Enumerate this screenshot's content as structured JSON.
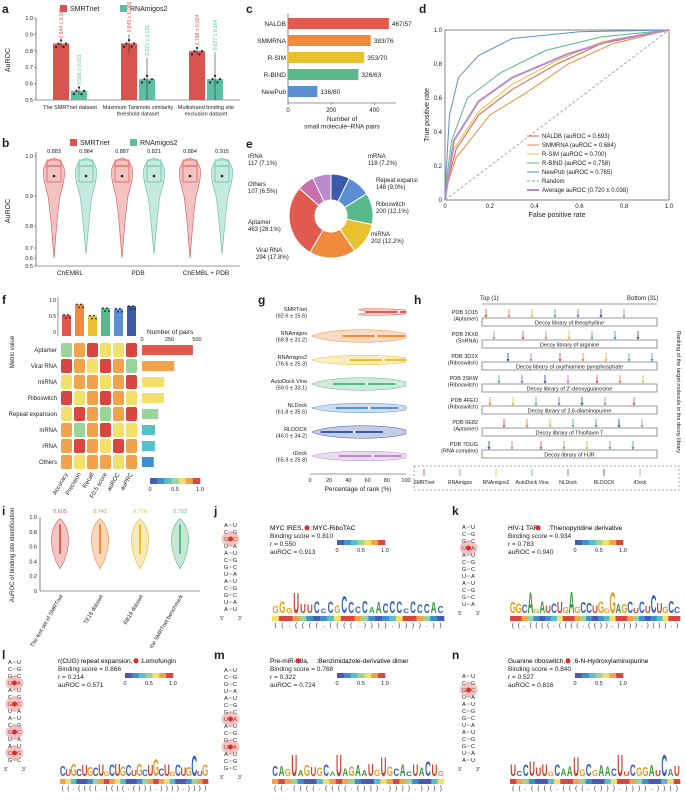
{
  "colors": {
    "smrt": "#d9534f",
    "rnam": "#5bbfa3",
    "red": "#e05a4f",
    "teal": "#4bb596",
    "orange": "#f08a3c",
    "purple": "#b98cc9",
    "yellow": "#e8c030",
    "green": "#58b98a",
    "blue": "#5b8fd1",
    "navy": "#3b5aa8",
    "pink": "#c86fb0",
    "gray": "#999999"
  },
  "panel_labels": {
    "a": "a",
    "b": "b",
    "c": "c",
    "d": "d",
    "e": "e",
    "f": "f",
    "g": "g",
    "h": "h",
    "i": "i",
    "j": "j",
    "k": "k",
    "l": "l",
    "m": "m",
    "n": "n"
  },
  "chart_data": [
    {
      "id": "a",
      "type": "bar",
      "ylabel": "AuROC",
      "legend": [
        "SMRTnet",
        "RNAmigos2"
      ],
      "categories": [
        "The SMRTnet dataset",
        "Maximum Tanimoto similarity threshold dataset",
        "Multistrand binding site exclusion dataset"
      ],
      "series": [
        {
          "name": "SMRTnet",
          "values": [
            0.844,
            0.845,
            0.798
          ],
          "errors": [
            0.019,
            0.056,
            0.024
          ]
        },
        {
          "name": "RNAmigos2",
          "values": [
            0.556,
            0.627,
            0.627
          ],
          "errors": [
            0.023,
            0.131,
            0.164
          ]
        }
      ],
      "value_labels": [
        "0.844 ± 0.019",
        "0.556 ± 0.023",
        "0.845 ± 0.056",
        "0.627 ± 0.131",
        "0.798 ± 0.024",
        "0.627 ± 0.164"
      ],
      "yticks": [
        "0.5",
        "0.6",
        "0.7",
        "0.8",
        "0.9",
        "1.0"
      ],
      "ylim": [
        0.5,
        1.0
      ]
    },
    {
      "id": "b",
      "type": "violin",
      "ylabel": "AuROC",
      "legend": [
        "SMRTnet",
        "RNAmigos2"
      ],
      "categories": [
        "ChEMBL",
        "PDB",
        "ChEMBL + PDB"
      ],
      "medians": [
        0.883,
        0.984,
        0.887,
        0.821,
        0.884,
        0.915
      ],
      "median_labels": [
        "0.883",
        "0.984",
        "0.887",
        "0.821",
        "0.884",
        "0.915"
      ],
      "yticks": [
        "0.5",
        "0.6",
        "0.7",
        "0.8",
        "0.9",
        "1.0"
      ]
    },
    {
      "id": "c",
      "type": "bar",
      "xlabel": "Number of small molecule–RNA pairs",
      "categories": [
        "NALDB",
        "SMMRNA",
        "R-SIM",
        "R-BIND",
        "NewPub"
      ],
      "values": [
        467,
        383,
        353,
        326,
        136
      ],
      "value_labels": [
        "467/57",
        "383/76",
        "353/70",
        "326/63",
        "136/80"
      ],
      "xticks": [
        "0",
        "200",
        "400"
      ],
      "xlim": [
        0,
        500
      ]
    },
    {
      "id": "d",
      "type": "line",
      "xlabel": "False positive rate",
      "ylabel": "True positive rate",
      "xticks": [
        "0",
        "0.2",
        "0.4",
        "0.6",
        "0.8",
        "1.0"
      ],
      "yticks": [
        "0",
        "0.2",
        "0.4",
        "0.6",
        "0.8",
        "1.0"
      ],
      "series": [
        {
          "name": "NALDB (auROC = 0.693)"
        },
        {
          "name": "SMMRNA (auROC = 0.684)"
        },
        {
          "name": "R-SIM (auROC = 0.700)"
        },
        {
          "name": "R-BIND (auROC = 0.758)"
        },
        {
          "name": "NewPub (auROC = 0.765)"
        },
        {
          "name": "Random"
        },
        {
          "name": "Average auROC (0.720 ± 0.038)"
        }
      ]
    },
    {
      "id": "e",
      "type": "pie",
      "labels": [
        "mRNA",
        "Repeat expansion",
        "Riboswitch",
        "miRNA",
        "Viral RNA",
        "Aptamer",
        "Others",
        "rRNA"
      ],
      "values": [
        118,
        148,
        200,
        202,
        294,
        463,
        107,
        117
      ],
      "value_labels": [
        "mRNA\n118 (7.2%)",
        "Repeat expansion\n148 (9.0%)",
        "Riboswitch\n200 (12.1%)",
        "miRNA\n202 (12.2%)",
        "Viral RNA\n294 (17.8%)",
        "Aptamer\n463 (28.1%)",
        "Others\n107 (6.5%)",
        "rRNA\n117 (7.1%)"
      ]
    },
    {
      "id": "f",
      "type": "heatmap",
      "ylabel": "Metric value",
      "rows": [
        "Aptamer",
        "Viral RNA",
        "miRNA",
        "Riboswitch",
        "Repeat expansion",
        "mRNA",
        "rRNA",
        "Others"
      ],
      "columns": [
        "Accuracy",
        "Precision",
        "Recall",
        "F0.5 score",
        "auROC",
        "auPRC"
      ],
      "bar_title": "Number of pairs",
      "bar_ticks": [
        "0",
        "250",
        "500"
      ],
      "bar_values": [
        463,
        294,
        202,
        200,
        148,
        118,
        117,
        107
      ],
      "colorbar": [
        "0",
        "0.5",
        "1.0"
      ]
    },
    {
      "id": "g",
      "type": "violin",
      "xlabel": "Percentage of rank (%)",
      "categories": [
        "SMRTnet\n(92.6 ± 15.6)",
        "RNAmigos\n(68.8 ± 31.2)",
        "RNAmigos2\n(76.6 ± 25.3)",
        "AutoDock Vina\n(59.0 ± 33.1)",
        "NLDock\n(61.8 ± 35.5)",
        "RLDOCK\n(46.0 ± 34.2)",
        "rDock\n(65.3 ± 25.8)"
      ],
      "xticks": [
        "0",
        "20",
        "40",
        "60",
        "80",
        "100"
      ]
    },
    {
      "id": "h",
      "type": "other",
      "top_label": "Top (1)",
      "bottom_label": "Bottom (31)",
      "side_label": "Ranking of the target molecule in the decoy library",
      "rows": [
        {
          "pdb": "PDB 1O15\n(Aptamer)",
          "lib": "Decoy library of theophylline"
        },
        {
          "pdb": "PDB 2KX8\n(SnRNA)",
          "lib": "Decoy library of arginine"
        },
        {
          "pdb": "PDB 3D2X\n(Riboswitch)",
          "lib": "Decoy library of oxythiamine pyrophosphate"
        },
        {
          "pdb": "PDB 3SKW\n(Riboswitch)",
          "lib": "Decoy library of 2′-deoxyguanosine"
        },
        {
          "pdb": "PDB 4FEO\n(Riboswitch)",
          "lib": "Decoy library of 2,6-diaminopurine"
        },
        {
          "pdb": "PDB 6E82\n(Aptamer)",
          "lib": "Decoy library of Thioflavin T"
        },
        {
          "pdb": "PDB 7DUG\n(RNA complex)",
          "lib": "Decoy library of HJR"
        }
      ],
      "legend": [
        "SMRTnet",
        "RNAmigos",
        "RNAmigos2",
        "AutoDock Vina",
        "NLDock",
        "RLDOCK",
        "rDock"
      ]
    },
    {
      "id": "i",
      "type": "violin",
      "ylabel": "AuROC of binding site identification",
      "categories": [
        "The test set of SMRTnet",
        "TE18 dataset",
        "RB19 dataset",
        "The interactions with known binding site in the SMRTnet benchmark"
      ],
      "median_labels": [
        "0.695",
        "0.741",
        "0.770",
        "0.793"
      ],
      "yticks": [
        "0",
        "0.2",
        "0.4",
        "0.6",
        "0.8",
        "1.0"
      ]
    }
  ],
  "motifs": {
    "j": {
      "title": "MYC IRES, ",
      "ligand": ":MYC-RiboTAC",
      "score": "Binding score = 0.810",
      "r": "r = 0.550",
      "auroc": "auROC = 0.913",
      "seq": "GGGUUUCCCGCCCCAACCCCCCCAC"
    },
    "k": {
      "title": "HIV-1 TAR, ",
      "ligand": ":Thienopyridine derivative",
      "score": "Binding score = 0.934",
      "r": "r = 0.783",
      "auroc": "auROC = 0.940",
      "seq": "GGCAGAUCUGAGCCUGGGAGCUCUCUGCC"
    },
    "l": {
      "title": "r(CUG) repeat expansion, ",
      "ligand": ":Lomofungin",
      "score": "Binding score = 0.866",
      "r": "r = 0.214",
      "auroc": "auROC = 0.571",
      "seq": "CUGCUGCUGCUGCUGCUGCUGCUGCUG"
    },
    "m": {
      "title": "Pre-miR-18a, ",
      "ligand": ":Benzimidazole-derivative dimer",
      "score": "Binding score = 0.768",
      "r": "r = 0.322",
      "auroc": "auROC = 0.724",
      "seq": "CAGUAGUGCAUAGAAUGUGCACUACUG"
    },
    "n": {
      "title": "Guanine riboswitch, ",
      "ligand": ":6-N-Hydroxylaminopurine",
      "score": "Binding score = 0.840",
      "r": "r = 0.527",
      "auroc": "auROC = 0.816",
      "seq": "UCCUUUGCAAUGCGAACUUCGGAUCAU"
    },
    "colorbar": [
      "0",
      "0.5",
      "1.0"
    ]
  }
}
